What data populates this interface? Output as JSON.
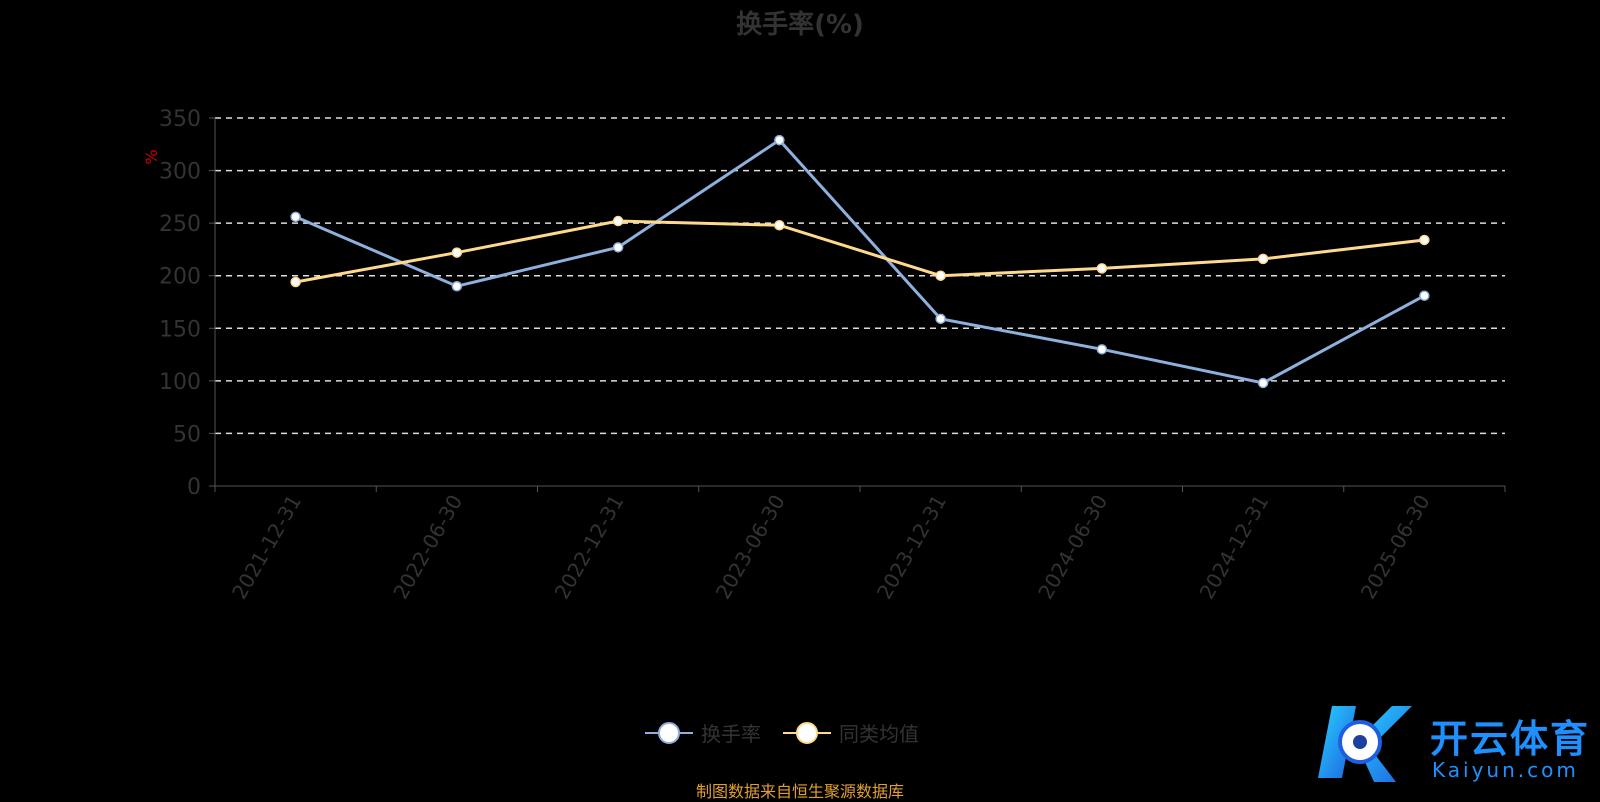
{
  "chart_data": {
    "type": "line",
    "title": "换手率(%)",
    "ylabel": "%",
    "xlabel": "",
    "ylim": [
      0,
      350
    ],
    "yticks": [
      0,
      50,
      100,
      150,
      200,
      250,
      300,
      350
    ],
    "grid": true,
    "legend_position": "bottom",
    "categories": [
      "2021-12-31",
      "2022-06-30",
      "2022-12-31",
      "2023-06-30",
      "2023-12-31",
      "2024-06-30",
      "2024-12-31",
      "2025-06-30"
    ],
    "series": [
      {
        "name": "换手率",
        "color": "#8eb0dc",
        "values": [
          256,
          190,
          227,
          329,
          159,
          130,
          98,
          181
        ]
      },
      {
        "name": "同类均值",
        "color": "#ffd98e",
        "values": [
          194,
          222,
          252,
          248,
          200,
          207,
          216,
          234
        ]
      }
    ]
  },
  "source_note": "制图数据来自恒生聚源数据库",
  "watermark": {
    "brand": "开云体育",
    "domain": "Kaiyun.com"
  }
}
